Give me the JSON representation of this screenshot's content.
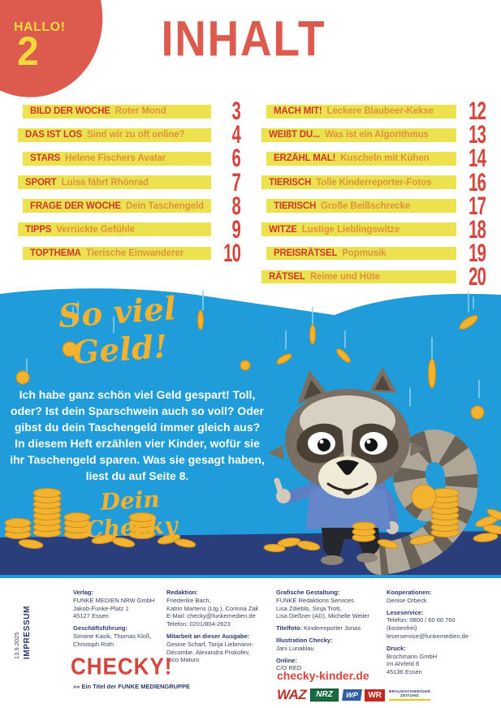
{
  "header": {
    "hallo": "HALLO!",
    "page_number": "2",
    "title": "INHALT"
  },
  "toc": {
    "left": [
      {
        "category": "BILD DER WOCHE",
        "title": "Roter Mond",
        "page": "3"
      },
      {
        "category": "DAS IST LOS",
        "title": "Sind wir zu oft online?",
        "page": "4"
      },
      {
        "category": "STARS",
        "title": "Helene Fischers Avatar",
        "page": "6"
      },
      {
        "category": "SPORT",
        "title": "Luisa fährt Rhönrad",
        "page": "7"
      },
      {
        "category": "FRAGE DER WOCHE",
        "title": "Dein Taschengeld",
        "page": "8"
      },
      {
        "category": "TIPPS",
        "title": "Verrückte Gefühle",
        "page": "9"
      },
      {
        "category": "TOPTHEMA",
        "title": "Tierische Einwanderer",
        "page": "10"
      }
    ],
    "right": [
      {
        "category": "MACH MIT!",
        "title": "Leckere Blaubeer-Kekse",
        "page": "12"
      },
      {
        "category": "WEIßT DU...",
        "title": "Was ist ein Algorithmus",
        "page": "13"
      },
      {
        "category": "ERZÄHL MAL!",
        "title": "Kuscheln mit Kühen",
        "page": "14"
      },
      {
        "category": "TIERISCH",
        "title": "Tolle Kinderreporter-Fotos",
        "page": "16"
      },
      {
        "category": "TIERISCH",
        "title": "Große Beißschrecke",
        "page": "17"
      },
      {
        "category": "WITZE",
        "title": "Lustige Lieblingswitze",
        "page": "18"
      },
      {
        "category": "PREISRÄTSEL",
        "title": "Popmusik",
        "page": "19"
      },
      {
        "category": "RÄTSEL",
        "title": "Reime und Hüte",
        "page": "20"
      }
    ]
  },
  "feature": {
    "headline": "So viel Geld!",
    "body": "Ich habe ganz schön viel Geld gespart! Toll, oder? Ist dein Sparschwein auch so voll? Oder gibst du dein Taschengeld immer gleich aus? In diesem Heft erzählen vier Kinder, wofür sie ihr Taschengeld sparen. Was sie gesagt haben, liest du auf Seite 8.",
    "signature": "Dein Checky",
    "illustration": "raccoon-mascot-with-coins"
  },
  "impressum": {
    "date": "13.9.2025",
    "label": "IMPRESSUM",
    "columns": [
      [
        {
          "heading": "Verlag:",
          "lines": [
            "FUNKE MEDIEN NRW GmbH",
            "Jakob-Funke-Platz 1",
            "45127 Essen"
          ]
        },
        {
          "heading": "Geschäftsführung:",
          "lines": [
            "Simone Kasik, Thomas Kloß,",
            "Christoph Rüth"
          ]
        }
      ],
      [
        {
          "heading": "Redaktion:",
          "lines": [
            "Friederike Bach,",
            "Katrin Martens (Ltg.), Corinna Zak",
            "E-Mail: checky@funkemedien.de",
            "Telefon: 0201/804-2623"
          ]
        },
        {
          "heading": "Mitarbeit an dieser Ausgabe:",
          "lines": [
            "Gesine Scharf, Tanja Liebmann-",
            "Décombe, Alexandra Prokofev,",
            "Nico Maturo"
          ]
        }
      ],
      [
        {
          "heading": "Grafische Gestaltung:",
          "lines": [
            "FUNKE Redaktions Services",
            "Lisa Zdieblo, Sinja Trott,",
            "Lisa Dießner (AD), Michelle Weiler"
          ]
        },
        {
          "heading": "Titelfoto:",
          "inline": "Kinderreporter Jonas",
          "lines": []
        },
        {
          "heading": "Illustration Checky:",
          "lines": [
            "Jani Lunablau"
          ]
        },
        {
          "heading": "Online:",
          "lines": [
            "C/O RED"
          ]
        }
      ],
      [
        {
          "heading": "Kooperationen:",
          "lines": [
            "Denise Orbeck"
          ]
        },
        {
          "heading": "Leseservice:",
          "lines": [
            "Telefon: 0800 / 60 60 760",
            "(kostenfrei)",
            "leserservice@funkemedien.de"
          ]
        },
        {
          "heading": "Druck:",
          "lines": [
            "Brochmann GmbH",
            "Im Ahrfeld 8",
            "45136 Essen"
          ]
        }
      ]
    ],
    "logo": "CHECKY!",
    "funke_line": "»» Ein Titel der FUNKE MEDIENGRUPPE",
    "website": "checky-kinder.de",
    "press_logos": {
      "waz": "WAZ",
      "nrz": "NRZ",
      "wp": "WP",
      "wr": "WR",
      "bz_line1": "BRAUNSCHWEIGER",
      "bz_line2": "ZEITUNG"
    }
  },
  "colors": {
    "brand_red": "#dd5a4e",
    "category_red": "#d0372e",
    "title_orange": "#e0923f",
    "accent_yellow_bar": "#ece24f",
    "hallo_yellow": "#f3d93b",
    "sky_blue": "#1f9cd9",
    "floor_navy": "#2b3e7c",
    "coin_gold": "#f2b331",
    "script_gold": "#f2b12e",
    "ink_navy": "#2e3a6e"
  }
}
